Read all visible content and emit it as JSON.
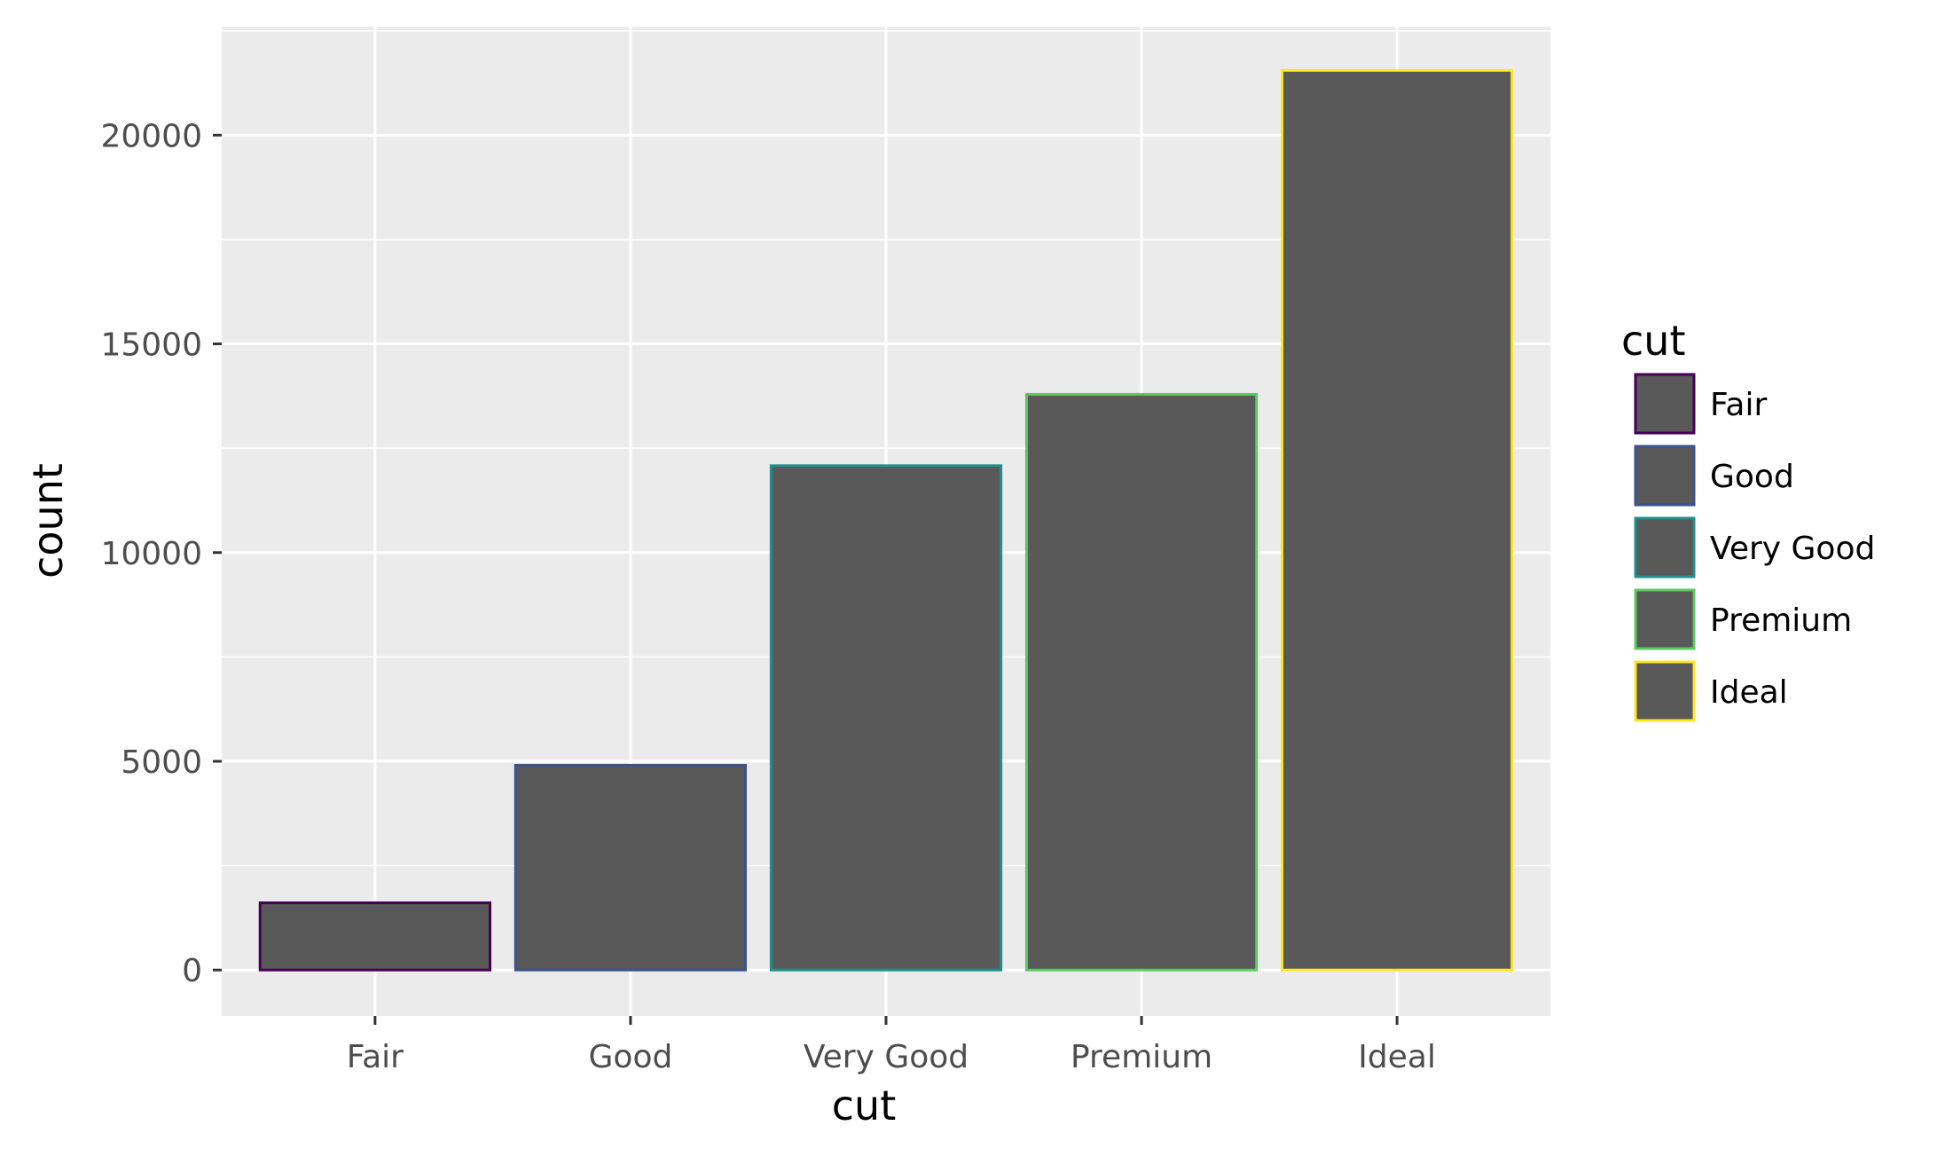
{
  "chart_data": {
    "type": "bar",
    "title": "",
    "xlabel": "cut",
    "ylabel": "count",
    "categories": [
      "Fair",
      "Good",
      "Very Good",
      "Premium",
      "Ideal"
    ],
    "values": [
      1610,
      4906,
      12082,
      13791,
      21551
    ],
    "ylim": [
      -1100,
      22600
    ],
    "y_ticks": [
      0,
      5000,
      10000,
      15000,
      20000
    ],
    "y_tick_labels": [
      "0",
      "5000",
      "10000",
      "15000",
      "20000"
    ],
    "grid": true,
    "bar_fill": "#595959",
    "outline_colors": [
      "#440154",
      "#3b528b",
      "#21908c",
      "#5dc863",
      "#fde725"
    ],
    "panel_background": "#ebebeb",
    "gridline_color": "#ffffff",
    "legend": {
      "title": "cut",
      "position": "right",
      "entries": [
        "Fair",
        "Good",
        "Very Good",
        "Premium",
        "Ideal"
      ]
    }
  }
}
